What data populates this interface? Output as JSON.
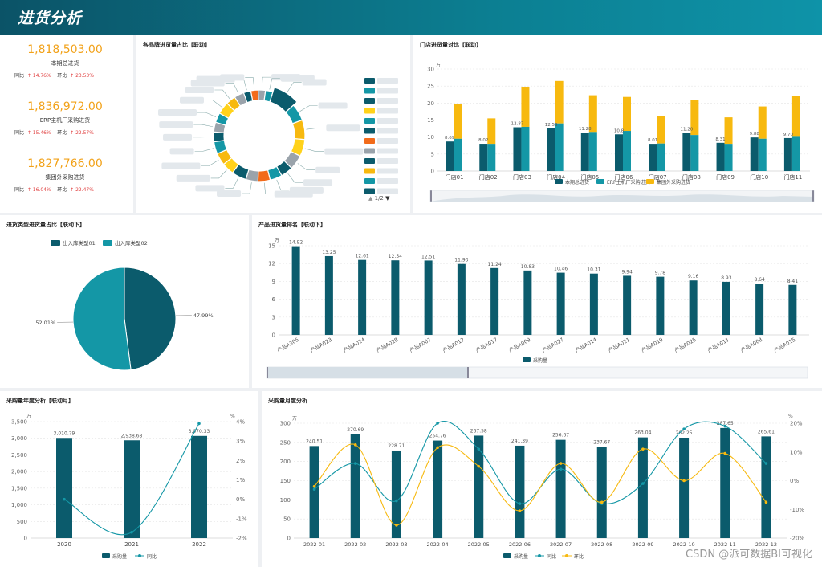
{
  "page": {
    "title": "进货分析"
  },
  "kpis": [
    {
      "value": "1,818,503.00",
      "label": "本期总进货",
      "yoy_label": "同比",
      "yoy": "↑ 14.76%",
      "mom_label": "环比",
      "mom": "↑ 23.53%"
    },
    {
      "value": "1,836,972.00",
      "label": "ERP主机厂采购进货",
      "yoy_label": "同比",
      "yoy": "↑ 15.46%",
      "mom_label": "环比",
      "mom": "↑ 22.57%"
    },
    {
      "value": "1,827,766.00",
      "label": "集团外采购进货",
      "yoy_label": "同比",
      "yoy": "↑ 16.04%",
      "mom_label": "环比",
      "mom": "↑ 22.47%"
    }
  ],
  "donut": {
    "title": "各品牌进货量占比【联动】",
    "pager": "1/2"
  },
  "store_chart": {
    "title": "门店进货量对比【联动】",
    "unit": "万"
  },
  "pie_chart": {
    "title": "进货类型进货量占比【联动下】"
  },
  "product_chart": {
    "title": "产品进货量排名【联动下】",
    "unit": "万"
  },
  "year_chart": {
    "title": "采购量年度分析【联动月】",
    "unit_left": "万",
    "unit_right": "%"
  },
  "month_chart": {
    "title": "采购量月度分析",
    "unit_left": "万",
    "unit_right": "%"
  },
  "watermark": "CSDN @派可数据BI可视化",
  "colors": {
    "dark": "#0b5b6c",
    "teal": "#1497a6",
    "gold": "#f7b90f",
    "header": "#0c7f92"
  },
  "chart_data": [
    {
      "id": "brand_donut",
      "type": "pie",
      "title": "各品牌进货量占比【联动】",
      "slices": [
        {
          "color": "#0b5b6c",
          "value": 10
        },
        {
          "color": "#1497a6",
          "value": 7
        },
        {
          "color": "#f7b90f",
          "value": 8
        },
        {
          "color": "#ffd21a",
          "value": 7
        },
        {
          "color": "#9aa3ab",
          "value": 6
        },
        {
          "color": "#0b5b6c",
          "value": 5
        },
        {
          "color": "#1497a6",
          "value": 5
        },
        {
          "color": "#f26b1a",
          "value": 5
        },
        {
          "color": "#9aa3ab",
          "value": 5
        },
        {
          "color": "#0b5b6c",
          "value": 6
        },
        {
          "color": "#ffd21a",
          "value": 5
        },
        {
          "color": "#f7b90f",
          "value": 5
        },
        {
          "color": "#1497a6",
          "value": 5
        },
        {
          "color": "#0b5b6c",
          "value": 4
        },
        {
          "color": "#9aa3ab",
          "value": 4
        },
        {
          "color": "#1497a6",
          "value": 4
        },
        {
          "color": "#ffd21a",
          "value": 5
        },
        {
          "color": "#f7b90f",
          "value": 4
        },
        {
          "color": "#9aa3ab",
          "value": 4
        },
        {
          "color": "#0b5b6c",
          "value": 3
        },
        {
          "color": "#f26b1a",
          "value": 3
        },
        {
          "color": "#9aa3ab",
          "value": 3
        },
        {
          "color": "#1497a6",
          "value": 3
        }
      ]
    },
    {
      "id": "store_bar",
      "type": "bar",
      "title": "门店进货量对比【联动】",
      "categories": [
        "门店01",
        "门店02",
        "门店03",
        "门店04",
        "门店05",
        "门店06",
        "门店07",
        "门店08",
        "门店09",
        "门店10",
        "门店11"
      ],
      "series": [
        {
          "name": "本期总进货",
          "values": [
            8.69,
            8.02,
            12.87,
            12.53,
            11.28,
            10.8,
            8.01,
            11.2,
            8.31,
            9.88,
            9.7
          ]
        },
        {
          "name": "ERP主机厂采购进货",
          "values": [
            9.5,
            8.0,
            13.0,
            14.0,
            11.5,
            11.8,
            8.1,
            10.6,
            8.0,
            9.5,
            10.3
          ]
        },
        {
          "name": "集团外采购进货",
          "values": [
            19.8,
            15.5,
            24.8,
            26.5,
            22.3,
            21.8,
            16.2,
            20.8,
            15.8,
            19.0,
            22.0
          ]
        }
      ],
      "labels": [
        "8.69",
        "8.02",
        "12.87",
        "12.53",
        "11.28",
        "10.8",
        "8.01",
        "11.20",
        "8.31",
        "9.88",
        "9.70"
      ],
      "ylim": [
        0,
        30
      ],
      "yticks": [
        0,
        5,
        10,
        15,
        20,
        25,
        30
      ]
    },
    {
      "id": "type_pie",
      "type": "pie",
      "title": "进货类型进货量占比【联动下】",
      "legend": [
        "出入库类型01",
        "出入库类型02"
      ],
      "slices": [
        {
          "name": "出入库类型01",
          "value": 47.99,
          "label": "47.99%"
        },
        {
          "name": "出入库类型02",
          "value": 52.01,
          "label": "52.01%"
        }
      ]
    },
    {
      "id": "product_bar",
      "type": "bar",
      "title": "产品进货量排名【联动下】",
      "series_name": "采购量",
      "categories": [
        "产品A305",
        "产品A023",
        "产品A024",
        "产品A028",
        "产品A007",
        "产品A012",
        "产品A017",
        "产品A009",
        "产品A027",
        "产品A014",
        "产品A021",
        "产品A019",
        "产品A025",
        "产品A011",
        "产品A008",
        "产品A015"
      ],
      "values": [
        14.92,
        13.25,
        12.61,
        12.54,
        12.51,
        11.93,
        11.24,
        10.83,
        10.46,
        10.31,
        9.94,
        9.78,
        9.16,
        8.93,
        8.64,
        8.41
      ],
      "labels": [
        "14.92",
        "13.25",
        "12.61",
        "12.54",
        "12.51",
        "11.93",
        "11.24",
        "10.83",
        "10.46",
        "10.31",
        "9.94",
        "9.78",
        "9.16",
        "8.93",
        "8.64",
        "8.41"
      ],
      "ylim": [
        0,
        15
      ],
      "yticks": [
        0,
        3,
        6,
        9,
        12,
        15
      ]
    },
    {
      "id": "year_combo",
      "type": "bar",
      "title": "采购量年度分析【联动月】",
      "categories": [
        "2020",
        "2021",
        "2022"
      ],
      "series": [
        {
          "name": "采购量",
          "kind": "bar",
          "values": [
            3010.79,
            2938.68,
            3070.33
          ],
          "labels": [
            "3,010.79",
            "2,938.68",
            "3,070.33"
          ]
        },
        {
          "name": "同比",
          "kind": "line",
          "values": [
            0.0,
            -1.7,
            3.9
          ]
        }
      ],
      "ylim": [
        0,
        3500
      ],
      "yticks": [
        "0",
        "500",
        "1,000",
        "1,500",
        "2,000",
        "2,500",
        "3,000",
        "3,500"
      ],
      "y2lim": [
        -2,
        4
      ],
      "y2ticks": [
        "-2%",
        "-1%",
        "0%",
        "1%",
        "2%",
        "3%",
        "4%"
      ]
    },
    {
      "id": "month_combo",
      "type": "bar",
      "title": "采购量月度分析",
      "categories": [
        "2022-01",
        "2022-02",
        "2022-03",
        "2022-04",
        "2022-05",
        "2022-06",
        "2022-07",
        "2022-08",
        "2022-09",
        "2022-10",
        "2022-11",
        "2022-12"
      ],
      "series": [
        {
          "name": "采购量",
          "kind": "bar",
          "values": [
            240.51,
            270.69,
            228.71,
            254.76,
            267.58,
            241.39,
            256.67,
            237.67,
            263.04,
            262.25,
            287.65,
            265.61
          ],
          "labels": [
            "240.51",
            "270.69",
            "228.71",
            "254.76",
            "267.58",
            "241.39",
            "256.67",
            "237.67",
            "263.04",
            "262.25",
            "287.65",
            "265.61"
          ]
        },
        {
          "name": "同比",
          "kind": "line",
          "values": [
            -3,
            6,
            -7,
            20,
            11,
            -8,
            4,
            -8,
            -1,
            18,
            19,
            6
          ]
        },
        {
          "name": "环比",
          "kind": "line",
          "values": [
            -2,
            12.5,
            -15.5,
            11.5,
            5,
            -10.5,
            6,
            -7.5,
            11,
            0,
            9.5,
            -7.5
          ]
        }
      ],
      "ylim": [
        0,
        300
      ],
      "yticks": [
        0,
        50,
        100,
        150,
        200,
        250,
        300
      ],
      "y2lim": [
        -20,
        20
      ],
      "y2ticks": [
        "-20%",
        "-10%",
        "0%",
        "10%",
        "20%"
      ]
    }
  ]
}
